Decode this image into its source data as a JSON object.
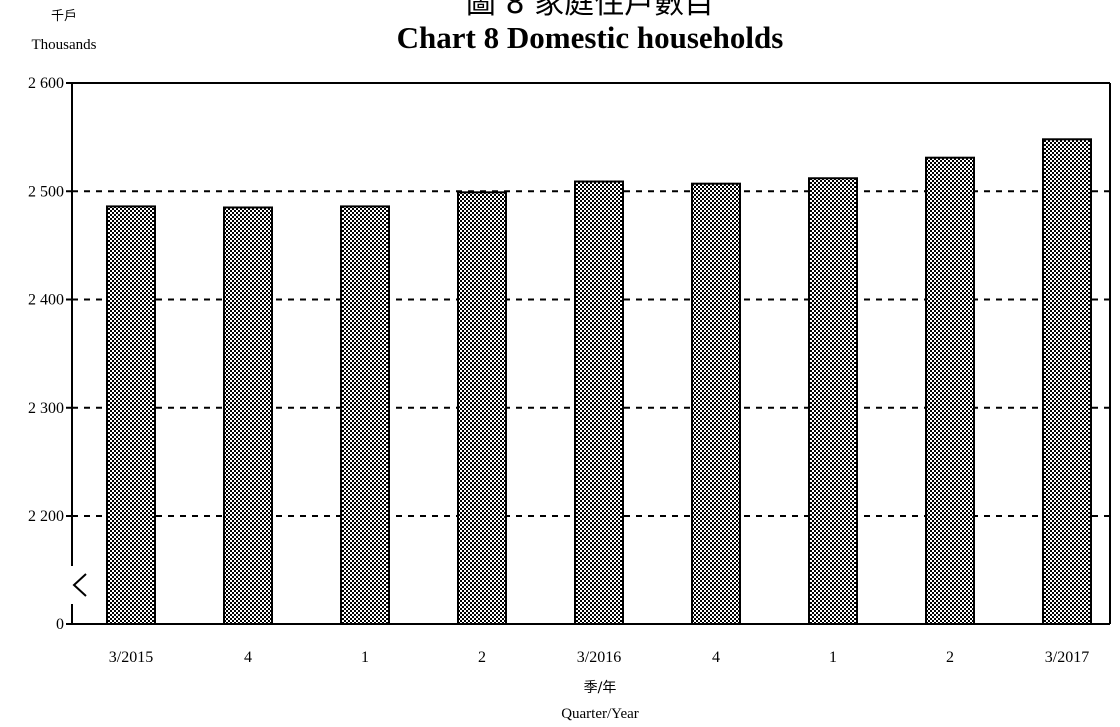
{
  "title_zh": "圖 8 家庭住戶數目",
  "title_en": "Chart 8  Domestic households",
  "unit_zh": "千戶",
  "unit_en": "Thousands",
  "xlabel_zh": "季/年",
  "xlabel_en": "Quarter/Year",
  "chart_data": {
    "type": "bar",
    "categories": [
      "3/2015",
      "4",
      "1",
      "2",
      "3/2016",
      "4",
      "1",
      "2",
      "3/2017"
    ],
    "values": [
      2486,
      2485,
      2486,
      2499,
      2509,
      2507,
      2512,
      2531,
      2548
    ],
    "y_ticks": [
      "0",
      "2 200",
      "2 300",
      "2 400",
      "2 500",
      "2 600"
    ],
    "ylim": [
      0,
      2600
    ],
    "axis_break": "between 0 and 2 200",
    "grid": "dashed horizontal",
    "bar_fill": "checkered",
    "colors": {
      "bar": "#ffffff",
      "pattern": "#000000"
    }
  }
}
